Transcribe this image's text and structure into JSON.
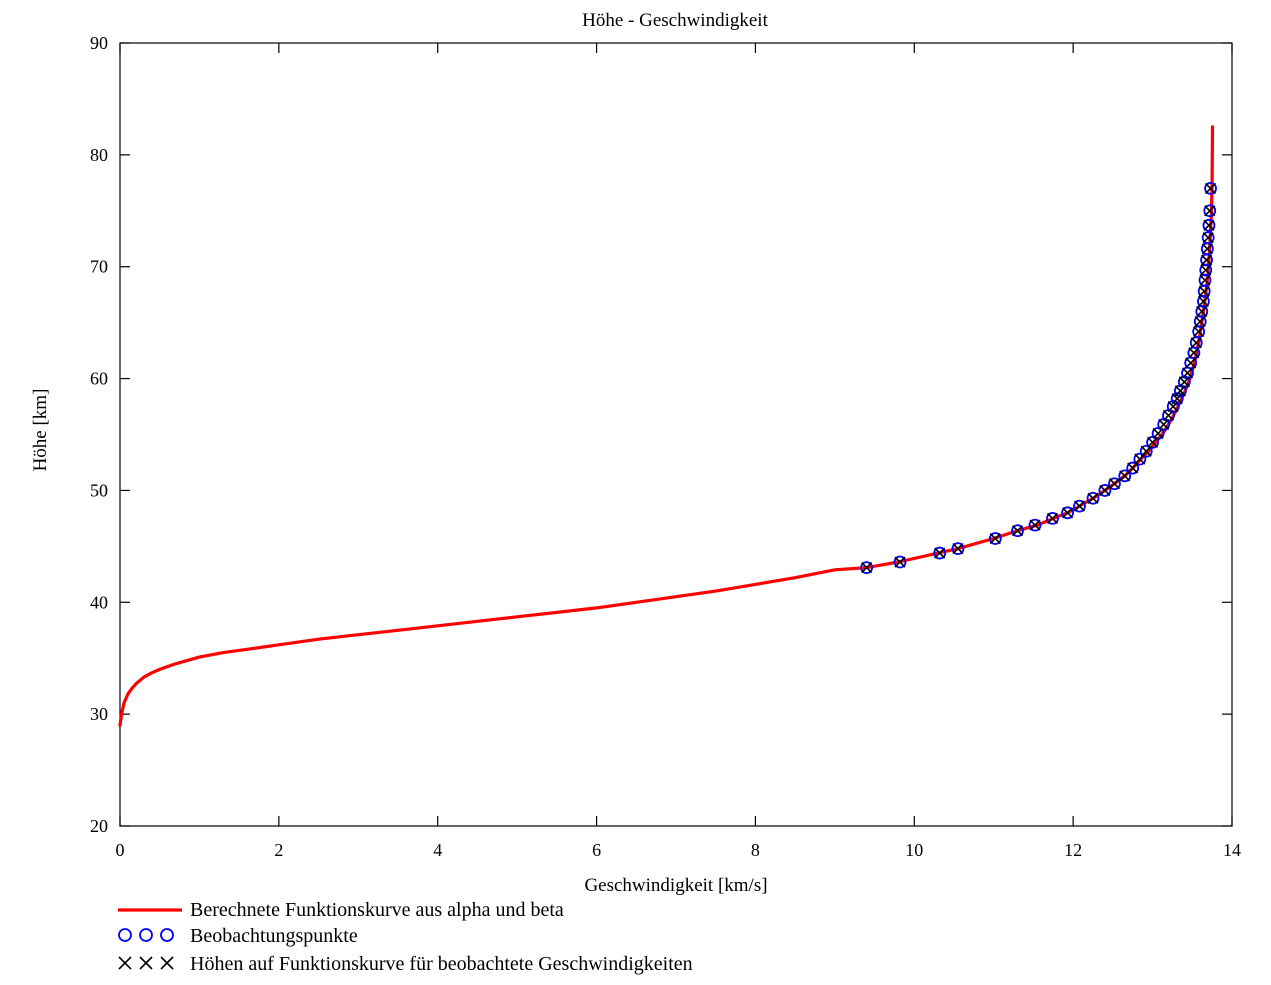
{
  "chart_data": {
    "type": "line",
    "title": "Höhe - Geschwindigkeit",
    "xlabel": "Geschwindigkeit [km/s]",
    "ylabel": "Höhe [km]",
    "xlim": [
      0,
      14
    ],
    "ylim": [
      20,
      90
    ],
    "xticks": [
      0,
      2,
      4,
      6,
      8,
      10,
      12,
      14
    ],
    "yticks": [
      20,
      30,
      40,
      50,
      60,
      70,
      80,
      90
    ],
    "grid": false,
    "legend_position": "below",
    "series": [
      {
        "name": "Berechnete Funktionskurve aus alpha und beta",
        "style": "line",
        "color": "#ff0000",
        "x": [
          0.0,
          0.02,
          0.05,
          0.1,
          0.15,
          0.2,
          0.3,
          0.4,
          0.5,
          0.7,
          1.0,
          1.3,
          1.6,
          2.0,
          2.5,
          3.0,
          3.5,
          4.0,
          4.5,
          5.0,
          5.5,
          6.0,
          6.5,
          7.0,
          7.5,
          8.0,
          8.5,
          9.0,
          9.4,
          9.8,
          10.3,
          10.55,
          11.0,
          11.3,
          11.55,
          11.75,
          11.93,
          12.08,
          12.25,
          12.4,
          12.52,
          12.65,
          12.75,
          12.85,
          12.95,
          13.05,
          13.15,
          13.25,
          13.32,
          13.4,
          13.47,
          13.53,
          13.58,
          13.62,
          13.66,
          13.7,
          13.72,
          13.74,
          13.75,
          13.755
        ],
        "y": [
          29.0,
          30.0,
          31.0,
          31.8,
          32.3,
          32.7,
          33.3,
          33.7,
          34.0,
          34.5,
          35.1,
          35.5,
          35.8,
          36.2,
          36.7,
          37.1,
          37.5,
          37.9,
          38.3,
          38.7,
          39.1,
          39.5,
          40.0,
          40.5,
          41.0,
          41.6,
          42.2,
          42.9,
          43.1,
          43.6,
          44.4,
          44.8,
          45.7,
          46.4,
          46.9,
          47.5,
          48.0,
          48.6,
          49.3,
          50.0,
          50.6,
          51.3,
          52.0,
          52.8,
          53.5,
          54.4,
          55.3,
          56.5,
          57.5,
          58.7,
          60.0,
          61.5,
          63.2,
          65.0,
          67.0,
          69.5,
          72.0,
          74.5,
          77.5,
          82.5
        ]
      },
      {
        "name": "Beobachtungspunkte",
        "style": "marker-circle",
        "color": "#0000ff",
        "x": [
          9.4,
          9.82,
          10.32,
          10.55,
          11.02,
          11.3,
          11.52,
          11.74,
          11.93,
          12.08,
          12.25,
          12.4,
          12.52,
          12.65,
          12.75,
          12.84,
          12.92,
          13.0,
          13.07,
          13.14,
          13.2,
          13.26,
          13.31,
          13.35,
          13.4,
          13.44,
          13.48,
          13.52,
          13.55,
          13.58,
          13.6,
          13.62,
          13.64,
          13.65,
          13.66,
          13.67,
          13.68,
          13.69,
          13.7,
          13.71,
          13.72,
          13.73
        ],
        "y": [
          43.1,
          43.6,
          44.4,
          44.8,
          45.7,
          46.4,
          46.9,
          47.5,
          48.0,
          48.6,
          49.3,
          50.0,
          50.6,
          51.3,
          52.0,
          52.8,
          53.5,
          54.3,
          55.1,
          55.9,
          56.7,
          57.5,
          58.2,
          58.9,
          59.7,
          60.5,
          61.4,
          62.3,
          63.2,
          64.2,
          65.1,
          66.0,
          66.9,
          67.8,
          68.8,
          69.7,
          70.6,
          71.6,
          72.6,
          73.7,
          75.0,
          77.0
        ]
      },
      {
        "name": "Höhen auf Funktionskurve für beobachtete Geschwindigkeiten",
        "style": "marker-x",
        "color": "#000000",
        "x": [
          9.4,
          9.82,
          10.32,
          10.55,
          11.02,
          11.3,
          11.52,
          11.74,
          11.93,
          12.08,
          12.25,
          12.4,
          12.52,
          12.65,
          12.75,
          12.84,
          12.92,
          13.0,
          13.07,
          13.14,
          13.2,
          13.26,
          13.31,
          13.35,
          13.4,
          13.44,
          13.48,
          13.52,
          13.55,
          13.58,
          13.6,
          13.62,
          13.64,
          13.65,
          13.66,
          13.67,
          13.68,
          13.69,
          13.7,
          13.71,
          13.72,
          13.73
        ],
        "y": [
          43.1,
          43.6,
          44.4,
          44.8,
          45.7,
          46.4,
          46.9,
          47.5,
          48.0,
          48.6,
          49.3,
          50.0,
          50.6,
          51.3,
          52.0,
          52.8,
          53.5,
          54.3,
          55.1,
          55.9,
          56.7,
          57.5,
          58.2,
          58.9,
          59.7,
          60.5,
          61.4,
          62.3,
          63.2,
          64.2,
          65.1,
          66.0,
          66.9,
          67.8,
          68.8,
          69.7,
          70.6,
          71.6,
          72.6,
          73.7,
          75.0,
          77.0
        ]
      }
    ]
  }
}
